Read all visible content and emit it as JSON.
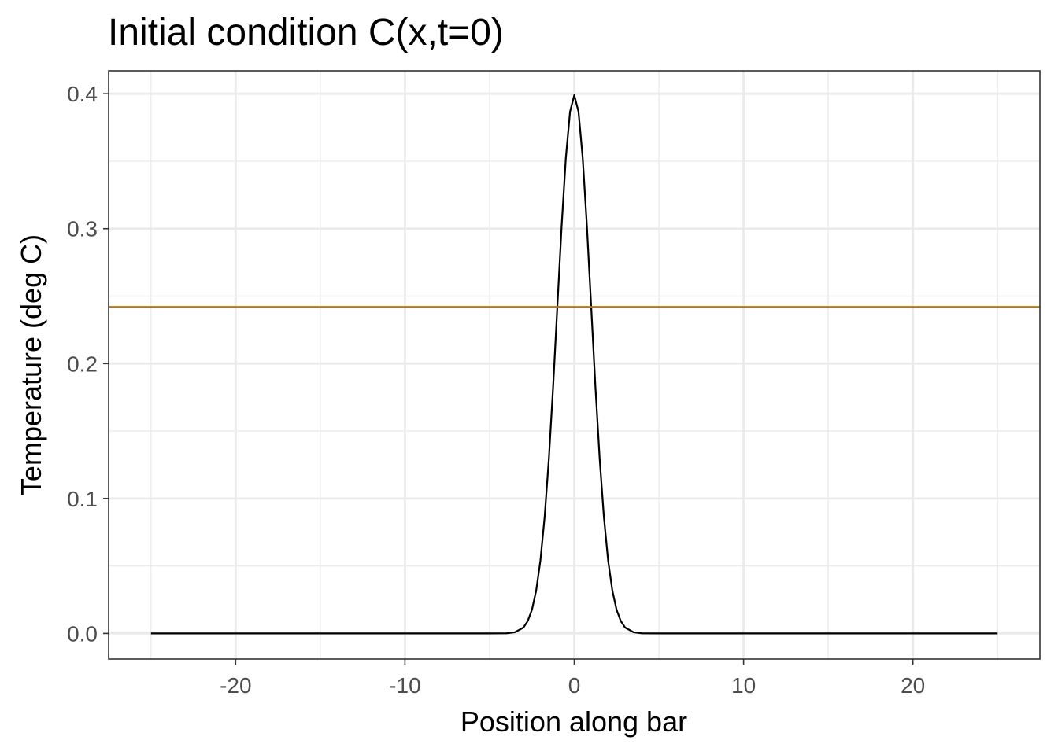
{
  "chart_data": {
    "type": "line",
    "title": "Initial condition C(x,t=0)",
    "xlabel": "Position along bar",
    "ylabel": "Temperature (deg C)",
    "xlim": [
      -27.5,
      27.5
    ],
    "ylim": [
      -0.019,
      0.417
    ],
    "x_ticks": [
      -20,
      -10,
      0,
      10,
      20
    ],
    "x_tick_labels": [
      "-20",
      "-10",
      "0",
      "10",
      "20"
    ],
    "y_ticks": [
      0.0,
      0.1,
      0.2,
      0.3,
      0.4
    ],
    "y_tick_labels": [
      "0.0",
      "0.1",
      "0.2",
      "0.3",
      "0.4"
    ],
    "x_minor_ticks": [
      -25,
      -15,
      -5,
      5,
      15,
      25
    ],
    "y_minor_ticks": [
      0.05,
      0.15,
      0.25,
      0.35
    ],
    "grid": true,
    "series": [
      {
        "x": [
          -25,
          -5,
          -4,
          -3.5,
          -3,
          -2.75,
          -2.5,
          -2.25,
          -2,
          -1.75,
          -1.5,
          -1.25,
          -1,
          -0.75,
          -0.5,
          -0.25,
          0,
          0.25,
          0.5,
          0.75,
          1,
          1.25,
          1.5,
          1.75,
          2,
          2.25,
          2.5,
          2.75,
          3,
          3.5,
          4,
          5,
          25
        ],
        "y": [
          0.0,
          0.0,
          0.0001,
          0.0009,
          0.0044,
          0.0091,
          0.0175,
          0.0317,
          0.054,
          0.0863,
          0.1295,
          0.1826,
          0.242,
          0.3011,
          0.3521,
          0.3867,
          0.3989,
          0.3867,
          0.3521,
          0.3011,
          0.242,
          0.1826,
          0.1295,
          0.0863,
          0.054,
          0.0317,
          0.0175,
          0.0091,
          0.0044,
          0.0009,
          0.0001,
          0.0,
          0.0
        ],
        "color": "#000000"
      }
    ],
    "hline": {
      "y": 0.242,
      "color": "#b8770f"
    }
  }
}
